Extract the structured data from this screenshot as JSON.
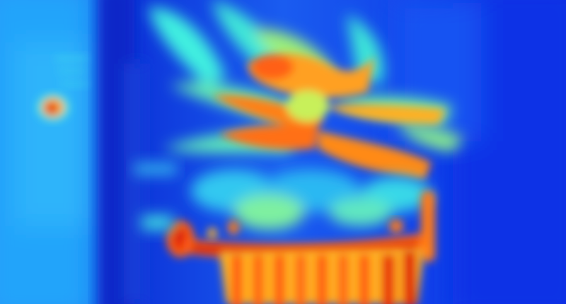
{
  "image": {
    "kind": "thermal-photo",
    "subject": "potted plant",
    "palette": {
      "cold_deep": "#0a2ad8",
      "cold": "#1e6cff",
      "cool": "#22b8ff",
      "mild": "#3ff0e0",
      "warm": "#c8f05a",
      "hot": "#ffb020",
      "hotter": "#ff5a10",
      "hottest": "#e01808"
    }
  }
}
